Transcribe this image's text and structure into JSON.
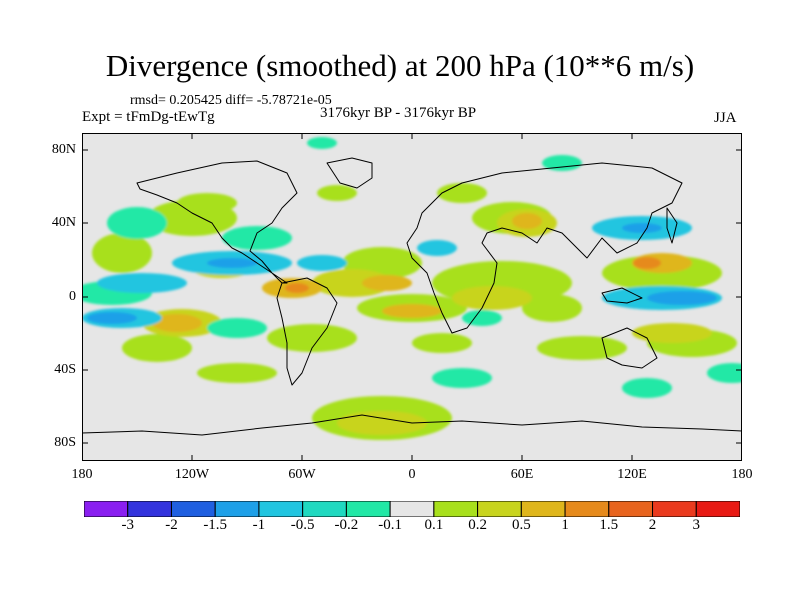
{
  "title": "Divergence (smoothed) at 200 hPa (10**6 m/s)",
  "stats": "rmsd= 0.205425 diff= -5.78721e-05",
  "experiment": "Expt = tFmDg-tEwTg",
  "period": "3176kyr BP - 3176kyr BP",
  "season": "JJA",
  "y_axis_labels": [
    "80N",
    "40N",
    "0",
    "40S",
    "80S"
  ],
  "x_axis_labels": [
    "180",
    "120W",
    "60W",
    "0",
    "60E",
    "120E",
    "180"
  ],
  "colorbar": {
    "labels": [
      "-3",
      "-2",
      "-1.5",
      "-1",
      "-0.5",
      "-0.2",
      "-0.1",
      "0.1",
      "0.2",
      "0.5",
      "1",
      "1.5",
      "2",
      "3"
    ],
    "colors": [
      "#8a1ff0",
      "#3333dd",
      "#1f5fe0",
      "#1ea0e8",
      "#21c5e0",
      "#20d9c0",
      "#22e8a6",
      "#e6e6e6",
      "#a8e01c",
      "#c8d41e",
      "#dfb61c",
      "#e68a1c",
      "#e8641e",
      "#ea3a1e",
      "#e81a14"
    ]
  }
}
